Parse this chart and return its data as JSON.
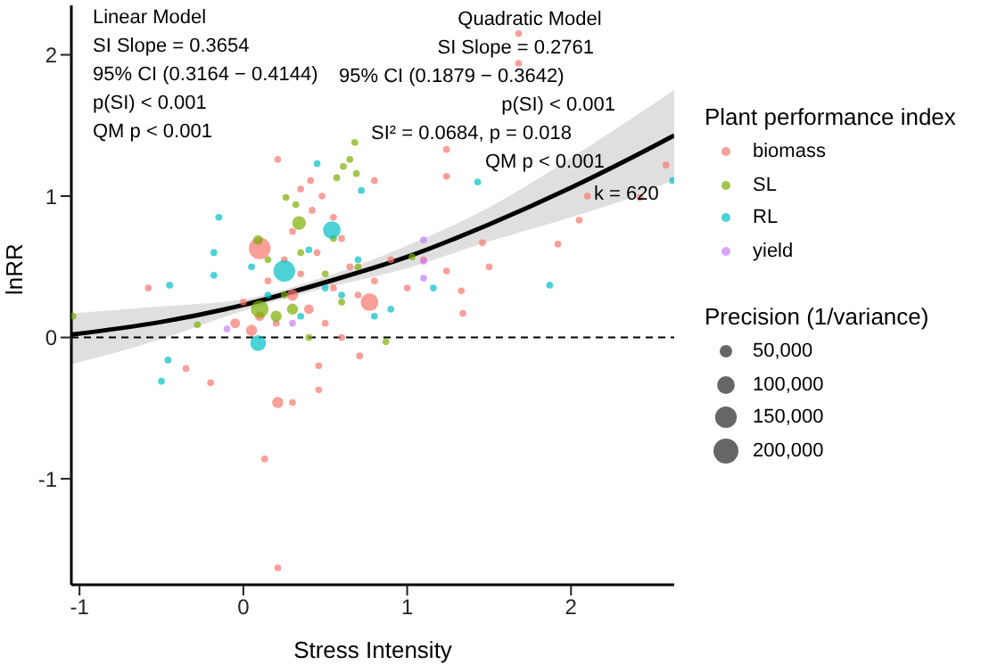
{
  "chart_data": {
    "type": "bubble",
    "xlabel": "Stress Intensity",
    "ylabel": "lnRR",
    "legend_title": "Plant performance index",
    "legend": "right",
    "grid": false,
    "marker": "circle",
    "xlim": [
      -1.05,
      2.63
    ],
    "ylim": [
      -1.75,
      2.35
    ],
    "xticks": [
      -1,
      0,
      1,
      2
    ],
    "yticks": [
      -1,
      0,
      1,
      2
    ],
    "size_legend": [
      {
        "value": 50000,
        "label": "50,000"
      },
      {
        "value": 100000,
        "label": "100,000"
      },
      {
        "value": 150000,
        "label": "150,000"
      },
      {
        "value": 200000,
        "label": "200,000"
      }
    ],
    "ref_lines": [
      {
        "axis": "y",
        "value": 0,
        "color": "#000000",
        "line_style": "dashed"
      }
    ],
    "annotations": [
      "Linear Model",
      "SI Slope = 0.3654",
      "95% CI (0.3164 − 0.4144)",
      "p(SI)  < 0.001",
      "QM p  < 0.001",
      "Quadratic Model",
      "SI Slope = 0.2761",
      "95% CI (0.1879 − 0.3642)",
      "p(SI) < 0.001",
      "SI² = 0.0684, p = 0.018",
      "QM p  < 0.001",
      "k = 620",
      "Precision (1/variance)"
    ],
    "series": [
      {
        "name": "biomass",
        "color": "#f8766d",
        "x": [
          -0.58,
          -0.35,
          -0.2,
          0.1,
          0.13,
          0.21,
          0.21,
          0.3,
          0.46,
          0.46,
          0.71,
          0.6,
          1.92,
          2.05,
          2.42,
          2.1,
          1.46,
          1.5,
          1.34,
          1.33,
          1.24,
          0.77,
          1.24,
          1.68,
          1.68,
          2.58,
          1.24,
          0.21,
          0.41,
          0.8,
          0.05,
          0.1,
          0.2,
          0.3,
          0.35,
          0.45,
          0.55,
          0.6,
          0.65,
          0.15,
          0.25,
          0.4,
          0.5,
          0.7,
          0.8,
          0.9,
          0.0,
          -0.05,
          0.3,
          0.42,
          0.55,
          0.35,
          0.48,
          1.0,
          1.1
        ],
        "values": [
          0.35,
          -0.22,
          -0.32,
          0.63,
          -0.86,
          -1.63,
          -0.46,
          -0.46,
          -0.37,
          -0.2,
          -0.13,
          0.0,
          0.66,
          0.83,
          0.99,
          1.0,
          0.67,
          0.5,
          0.17,
          0.33,
          0.47,
          0.25,
          1.33,
          2.15,
          1.94,
          1.22,
          1.14,
          1.26,
          1.11,
          1.11,
          0.05,
          0.15,
          0.1,
          0.3,
          0.45,
          0.6,
          0.35,
          0.7,
          0.5,
          0.4,
          0.55,
          0.2,
          0.1,
          0.3,
          0.4,
          0.55,
          0.25,
          0.1,
          0.75,
          0.9,
          0.85,
          1.05,
          1.0,
          0.35,
          0.55
        ],
        "sizes": [
          15000,
          15000,
          15000,
          150000,
          15000,
          15000,
          40000,
          15000,
          15000,
          15000,
          15000,
          15000,
          15000,
          15000,
          15000,
          15000,
          15000,
          15000,
          15000,
          15000,
          15000,
          100000,
          15000,
          15000,
          15000,
          15000,
          15000,
          15000,
          15000,
          15000,
          40000,
          30000,
          15000,
          40000,
          15000,
          15000,
          15000,
          15000,
          15000,
          15000,
          15000,
          30000,
          15000,
          15000,
          15000,
          15000,
          15000,
          30000,
          15000,
          15000,
          15000,
          15000,
          15000,
          15000,
          15000
        ]
      },
      {
        "name": "SL",
        "color": "#7cae00",
        "x": [
          0.68,
          0.65,
          0.61,
          0.69,
          0.57,
          0.26,
          0.32,
          0.1,
          0.2,
          0.25,
          0.3,
          0.15,
          0.35,
          0.5,
          0.55,
          0.7,
          0.6,
          0.4,
          0.87,
          -1.04,
          0.34,
          0.09,
          1.03,
          -0.28
        ],
        "values": [
          1.38,
          1.26,
          1.21,
          1.16,
          1.13,
          0.99,
          0.94,
          0.2,
          0.15,
          0.3,
          0.2,
          0.55,
          0.6,
          0.45,
          0.7,
          0.5,
          0.25,
          0.0,
          -0.03,
          0.15,
          0.81,
          0.69,
          0.57,
          0.09
        ],
        "sizes": [
          15000,
          15000,
          15000,
          15000,
          15000,
          15000,
          15000,
          100000,
          40000,
          15000,
          40000,
          15000,
          15000,
          15000,
          15000,
          15000,
          15000,
          15000,
          15000,
          15000,
          60000,
          30000,
          15000,
          15000
        ]
      },
      {
        "name": "RL",
        "color": "#00bfc4",
        "x": [
          -0.15,
          -0.45,
          -0.5,
          -0.46,
          -0.18,
          -0.18,
          1.87,
          2.62,
          1.43,
          0.45,
          0.72,
          0.54,
          0.25,
          0.09,
          0.35,
          0.5,
          0.6,
          0.7,
          0.4,
          0.15,
          0.05,
          0.9,
          1.16,
          0.8
        ],
        "values": [
          0.85,
          0.37,
          -0.31,
          -0.16,
          0.6,
          0.44,
          0.37,
          1.11,
          1.1,
          1.23,
          1.04,
          0.76,
          0.47,
          -0.04,
          0.15,
          0.35,
          0.3,
          0.55,
          0.62,
          0.3,
          0.5,
          0.2,
          0.35,
          0.15
        ],
        "sizes": [
          15000,
          15000,
          15000,
          15000,
          15000,
          15000,
          15000,
          15000,
          15000,
          15000,
          15000,
          100000,
          150000,
          80000,
          15000,
          15000,
          15000,
          15000,
          15000,
          15000,
          15000,
          15000,
          15000,
          15000
        ]
      },
      {
        "name": "yield",
        "color": "#c77cff",
        "x": [
          1.1,
          1.1,
          -0.1,
          1.1,
          0.3
        ],
        "values": [
          0.69,
          0.54,
          0.06,
          0.42,
          0.1
        ],
        "sizes": [
          15000,
          15000,
          15000,
          15000,
          15000
        ]
      },
      {
        "type": "line",
        "color": "#000000",
        "marker": "none",
        "x": [
          -1.05,
          -0.5,
          0,
          0.5,
          1,
          1.5,
          2,
          2.5,
          2.63
        ],
        "values": [
          0.02,
          0.11,
          0.23,
          0.39,
          0.57,
          0.8,
          1.06,
          1.35,
          1.43
        ],
        "lower": [
          -0.19,
          -0.01,
          0.19,
          0.35,
          0.49,
          0.68,
          0.85,
          1.05,
          1.12
        ],
        "upper": [
          0.17,
          0.22,
          0.27,
          0.43,
          0.65,
          0.92,
          1.27,
          1.65,
          1.75
        ]
      }
    ]
  }
}
